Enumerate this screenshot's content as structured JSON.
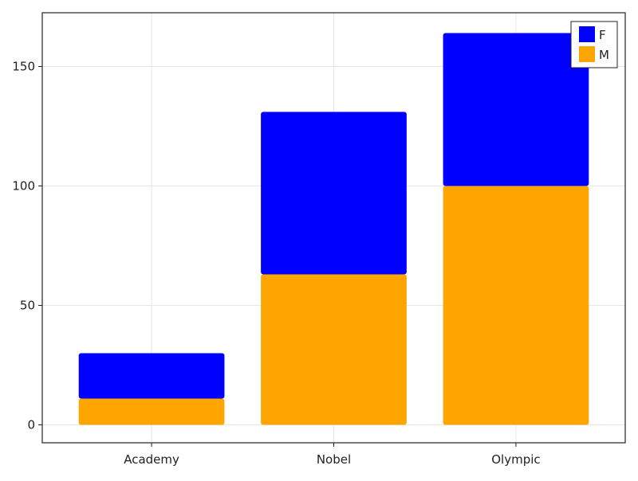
{
  "chart_data": {
    "type": "bar",
    "stacked": true,
    "categories": [
      "Academy",
      "Nobel",
      "Olympic"
    ],
    "series": [
      {
        "name": "M",
        "color": "#FFA500",
        "values": [
          11,
          63,
          100
        ]
      },
      {
        "name": "F",
        "color": "#0000FF",
        "values": [
          19,
          68,
          64
        ]
      }
    ],
    "title": "",
    "xlabel": "",
    "ylabel": "",
    "ylim": [
      -7.5,
      172.5
    ],
    "yticks": [
      0,
      50,
      100,
      150
    ],
    "ytick_labels": [
      "0",
      "50",
      "100",
      "150"
    ],
    "grid": true,
    "legend": {
      "placement": "top-right",
      "entries": [
        {
          "label": "F",
          "color": "#0000FF"
        },
        {
          "label": "M",
          "color": "#FFA500"
        }
      ]
    }
  }
}
